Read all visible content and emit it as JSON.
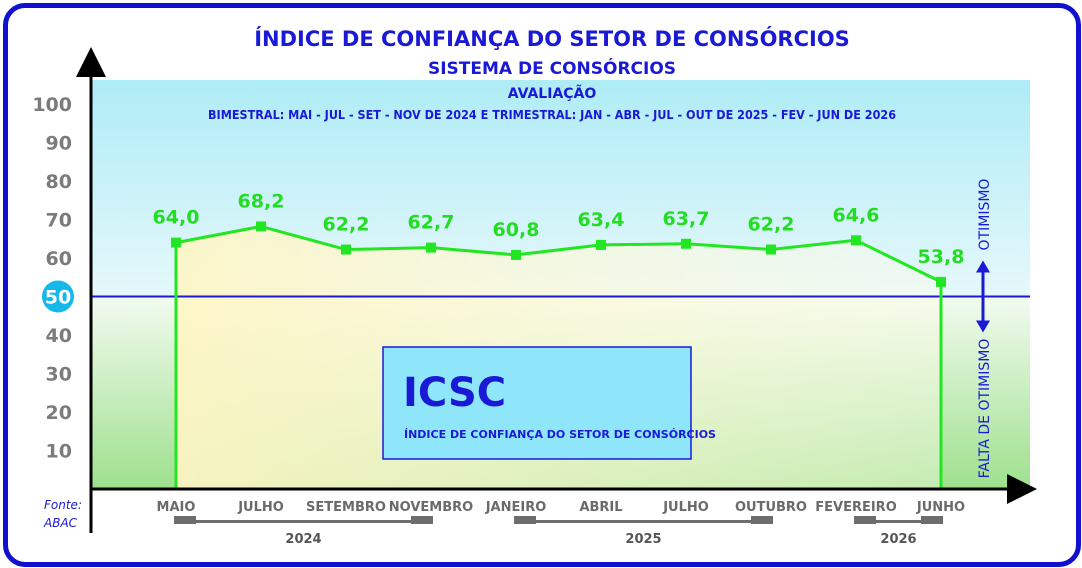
{
  "chart_data": {
    "type": "line",
    "title": "ÍNDICE DE CONFIANÇA DO SETOR DE CONSÓRCIOS",
    "subtitle": "SISTEMA DE CONSÓRCIOS",
    "evaluation_title": "AVALIAÇÃO",
    "evaluation_detail": "BIMESTRAL: MAI - JUL - SET - NOV DE 2024 E TRIMESTRAL: JAN - ABR - JUL - OUT DE 2025 - FEV - JUN DE 2026",
    "categories": [
      "MAIO",
      "JULHO",
      "SETEMBRO",
      "NOVEMBRO",
      "JANEIRO",
      "ABRIL",
      "JULHO",
      "OUTUBRO",
      "FEVEREIRO",
      "JUNHO"
    ],
    "values": [
      64.0,
      68.2,
      62.2,
      62.7,
      60.8,
      63.4,
      63.7,
      62.2,
      64.6,
      53.8
    ],
    "value_labels": [
      "64,0",
      "68,2",
      "62,2",
      "62,7",
      "60,8",
      "63,4",
      "63,7",
      "62,2",
      "64,6",
      "53,8"
    ],
    "year_groups": [
      {
        "label": "2024",
        "from": 0,
        "to": 3
      },
      {
        "label": "2025",
        "from": 4,
        "to": 7
      },
      {
        "label": "2026",
        "from": 8,
        "to": 9
      }
    ],
    "ylim": [
      0,
      100
    ],
    "yticks": [
      "10",
      "20",
      "30",
      "40",
      "50",
      "60",
      "70",
      "80",
      "90",
      "100"
    ],
    "reference_value": 50,
    "reference_label": "50",
    "above_label": "OTIMISMO",
    "below_label": "FALTA DE OTIMISMO",
    "grid": false,
    "line_color": "#22e622",
    "reference_color": "#1a1ad6"
  },
  "box": {
    "acronym": "ICSC",
    "description": "ÍNDICE DE CONFIANÇA DO SETOR DE CONSÓRCIOS"
  },
  "source": {
    "line1": "Fonte:",
    "line2": "ABAC"
  }
}
